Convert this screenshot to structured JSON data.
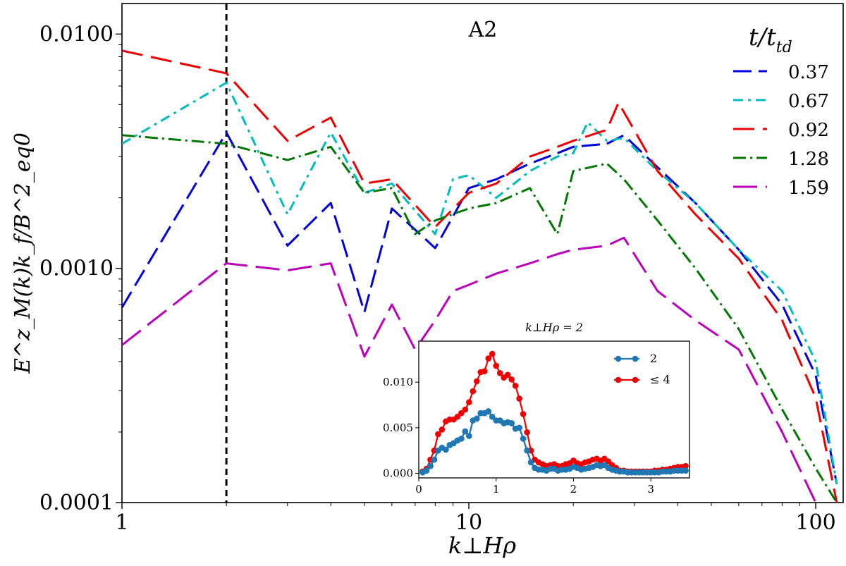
{
  "chart_data": {
    "type": "line",
    "title": "A2",
    "xlabel": "k⊥Hρ",
    "ylabel": "E^z_M(k)k_f/B^2_eq0",
    "xscale": "log",
    "yscale": "log",
    "xlim": [
      1,
      120
    ],
    "ylim": [
      0.0001,
      0.0135
    ],
    "x_ticks": [
      1,
      10,
      100
    ],
    "x_tick_labels": [
      "1",
      "10",
      "100"
    ],
    "y_ticks": [
      0.0001,
      0.001,
      0.01
    ],
    "y_tick_labels": [
      "0.0001",
      "0.0010",
      "0.0100"
    ],
    "reference_line": {
      "x": 2,
      "style": "dashed",
      "color": "#000000"
    },
    "legend": {
      "title": "t/t_td",
      "title_main": "t/t",
      "title_sub": "td",
      "placement": "top-right"
    },
    "series": [
      {
        "name": "0.37",
        "color": "#0000dd",
        "dash": "26 10",
        "x": [
          1,
          2,
          3,
          4,
          5,
          6,
          8,
          10,
          12,
          15,
          18,
          20,
          25,
          28,
          35,
          45,
          60,
          80,
          100,
          115
        ],
        "y": [
          0.00068,
          0.0038,
          0.00125,
          0.0019,
          0.00065,
          0.0018,
          0.00122,
          0.0022,
          0.0024,
          0.0028,
          0.0031,
          0.0033,
          0.0034,
          0.0037,
          0.0027,
          0.0019,
          0.0012,
          0.0007,
          0.00035,
          0.00012
        ]
      },
      {
        "name": "0.67",
        "color": "#00bbbb",
        "dash": "14 7 4 7",
        "x": [
          1,
          2,
          3,
          4,
          5,
          6,
          8,
          9,
          10,
          12,
          15,
          18,
          20,
          22,
          25,
          28,
          35,
          45,
          60,
          80,
          100,
          115
        ],
        "y": [
          0.0034,
          0.0062,
          0.0017,
          0.0038,
          0.0021,
          0.0023,
          0.0014,
          0.0024,
          0.0025,
          0.002,
          0.0026,
          0.003,
          0.0031,
          0.0042,
          0.0035,
          0.0036,
          0.0026,
          0.0019,
          0.0012,
          0.0008,
          0.0004,
          0.00012
        ]
      },
      {
        "name": "0.92",
        "color": "#ee0000",
        "dash": "30 12",
        "x": [
          1,
          2,
          3,
          4,
          5,
          6,
          8,
          10,
          12,
          15,
          18,
          20,
          25,
          27,
          35,
          45,
          60,
          80,
          100,
          115
        ],
        "y": [
          0.0085,
          0.0068,
          0.0035,
          0.0044,
          0.0023,
          0.0024,
          0.0015,
          0.0021,
          0.0023,
          0.003,
          0.0033,
          0.0035,
          0.0039,
          0.0051,
          0.0026,
          0.0017,
          0.0011,
          0.0006,
          0.00028,
          0.0001
        ]
      },
      {
        "name": "1.28",
        "color": "#007700",
        "dash": "18 6 3 6",
        "x": [
          1,
          2,
          3,
          4,
          5,
          6,
          7,
          8,
          10,
          12,
          15,
          18,
          20,
          25,
          28,
          35,
          45,
          60,
          80,
          100,
          115
        ],
        "y": [
          0.0037,
          0.0034,
          0.0029,
          0.0033,
          0.0021,
          0.0022,
          0.0014,
          0.0016,
          0.0018,
          0.0019,
          0.0022,
          0.0014,
          0.0026,
          0.0028,
          0.0024,
          0.0016,
          0.001,
          0.00055,
          0.00025,
          0.00014,
          0.0001
        ]
      },
      {
        "name": "1.59",
        "color": "#bb00bb",
        "dash": "34 12",
        "x": [
          1,
          2,
          3,
          4,
          5,
          6,
          7,
          8,
          9,
          10,
          12,
          15,
          18,
          20,
          25,
          28,
          35,
          45,
          60,
          80,
          100
        ],
        "y": [
          0.00047,
          0.00105,
          0.00098,
          0.00105,
          0.00042,
          0.0007,
          0.00045,
          0.0006,
          0.0008,
          0.00085,
          0.00095,
          0.00105,
          0.00115,
          0.0012,
          0.00125,
          0.00135,
          0.0008,
          0.0006,
          0.00045,
          0.0002,
          0.0001
        ]
      }
    ],
    "inset": {
      "title": "k⊥Hρ = 2",
      "xlim": [
        0,
        3.5
      ],
      "ylim": [
        -0.0005,
        0.0145
      ],
      "x_ticks": [
        0,
        1,
        2,
        3
      ],
      "x_tick_labels": [
        "0",
        "1",
        "2",
        "3"
      ],
      "y_ticks": [
        0,
        0.005,
        0.01
      ],
      "y_tick_labels": [
        "0.000",
        "0.005",
        "0.010"
      ],
      "x": [
        0.05,
        0.1,
        0.15,
        0.2,
        0.25,
        0.3,
        0.35,
        0.4,
        0.45,
        0.5,
        0.55,
        0.6,
        0.65,
        0.7,
        0.75,
        0.8,
        0.85,
        0.9,
        0.95,
        1.0,
        1.05,
        1.1,
        1.15,
        1.2,
        1.25,
        1.3,
        1.35,
        1.4,
        1.45,
        1.5,
        1.55,
        1.6,
        1.65,
        1.7,
        1.75,
        1.8,
        1.85,
        1.9,
        1.95,
        2.0,
        2.05,
        2.1,
        2.15,
        2.2,
        2.25,
        2.3,
        2.35,
        2.4,
        2.45,
        2.5,
        2.55,
        2.6,
        2.65,
        2.7,
        2.75,
        2.8,
        2.85,
        2.9,
        2.95,
        3.0,
        3.05,
        3.1,
        3.15,
        3.2,
        3.25,
        3.3,
        3.35,
        3.4,
        3.45
      ],
      "series": [
        {
          "name": "2",
          "color": "#1f77b4",
          "y": [
            0.0001,
            0.0003,
            0.0008,
            0.0015,
            0.0025,
            0.0028,
            0.0026,
            0.0031,
            0.0033,
            0.0036,
            0.0038,
            0.0046,
            0.0041,
            0.0058,
            0.006,
            0.0066,
            0.0066,
            0.0068,
            0.0062,
            0.0058,
            0.0058,
            0.0055,
            0.0056,
            0.0055,
            0.0049,
            0.005,
            0.0038,
            0.0025,
            0.0012,
            0.0006,
            0.0004,
            0.0004,
            0.0003,
            0.0005,
            0.0005,
            0.0003,
            0.0004,
            0.0004,
            0.0005,
            0.0007,
            0.0006,
            0.0004,
            0.0005,
            0.0006,
            0.0007,
            0.0009,
            0.0008,
            0.0009,
            0.0006,
            0.0004,
            0.0003,
            0.0002,
            0.0002,
            0.0001,
            0.0001,
            0.0001,
            0.0001,
            0.0001,
            0.0001,
            0.0001,
            0.0001,
            0.0001,
            0.0002,
            0.0002,
            0.0002,
            0.0003,
            0.0003,
            0.0003,
            0.0003
          ]
        },
        {
          "name": "≤ 4",
          "color": "#ee0000",
          "y": [
            0.0002,
            0.0005,
            0.0015,
            0.0025,
            0.0043,
            0.0048,
            0.0057,
            0.0059,
            0.0059,
            0.0062,
            0.0066,
            0.007,
            0.0078,
            0.009,
            0.0101,
            0.0111,
            0.0112,
            0.0126,
            0.0131,
            0.0118,
            0.011,
            0.0105,
            0.0108,
            0.0103,
            0.0096,
            0.0082,
            0.0065,
            0.0045,
            0.0025,
            0.0015,
            0.0012,
            0.001,
            0.0008,
            0.0009,
            0.001,
            0.0008,
            0.0008,
            0.001,
            0.0011,
            0.0014,
            0.0011,
            0.001,
            0.0012,
            0.0013,
            0.0015,
            0.0016,
            0.0014,
            0.0016,
            0.0013,
            0.0009,
            0.0006,
            0.0003,
            0.0003,
            0.0002,
            0.0002,
            0.0002,
            0.0002,
            0.0002,
            0.0002,
            0.0002,
            0.0003,
            0.0003,
            0.0004,
            0.0004,
            0.0005,
            0.0006,
            0.0007,
            0.0007,
            0.0008
          ]
        }
      ]
    }
  }
}
